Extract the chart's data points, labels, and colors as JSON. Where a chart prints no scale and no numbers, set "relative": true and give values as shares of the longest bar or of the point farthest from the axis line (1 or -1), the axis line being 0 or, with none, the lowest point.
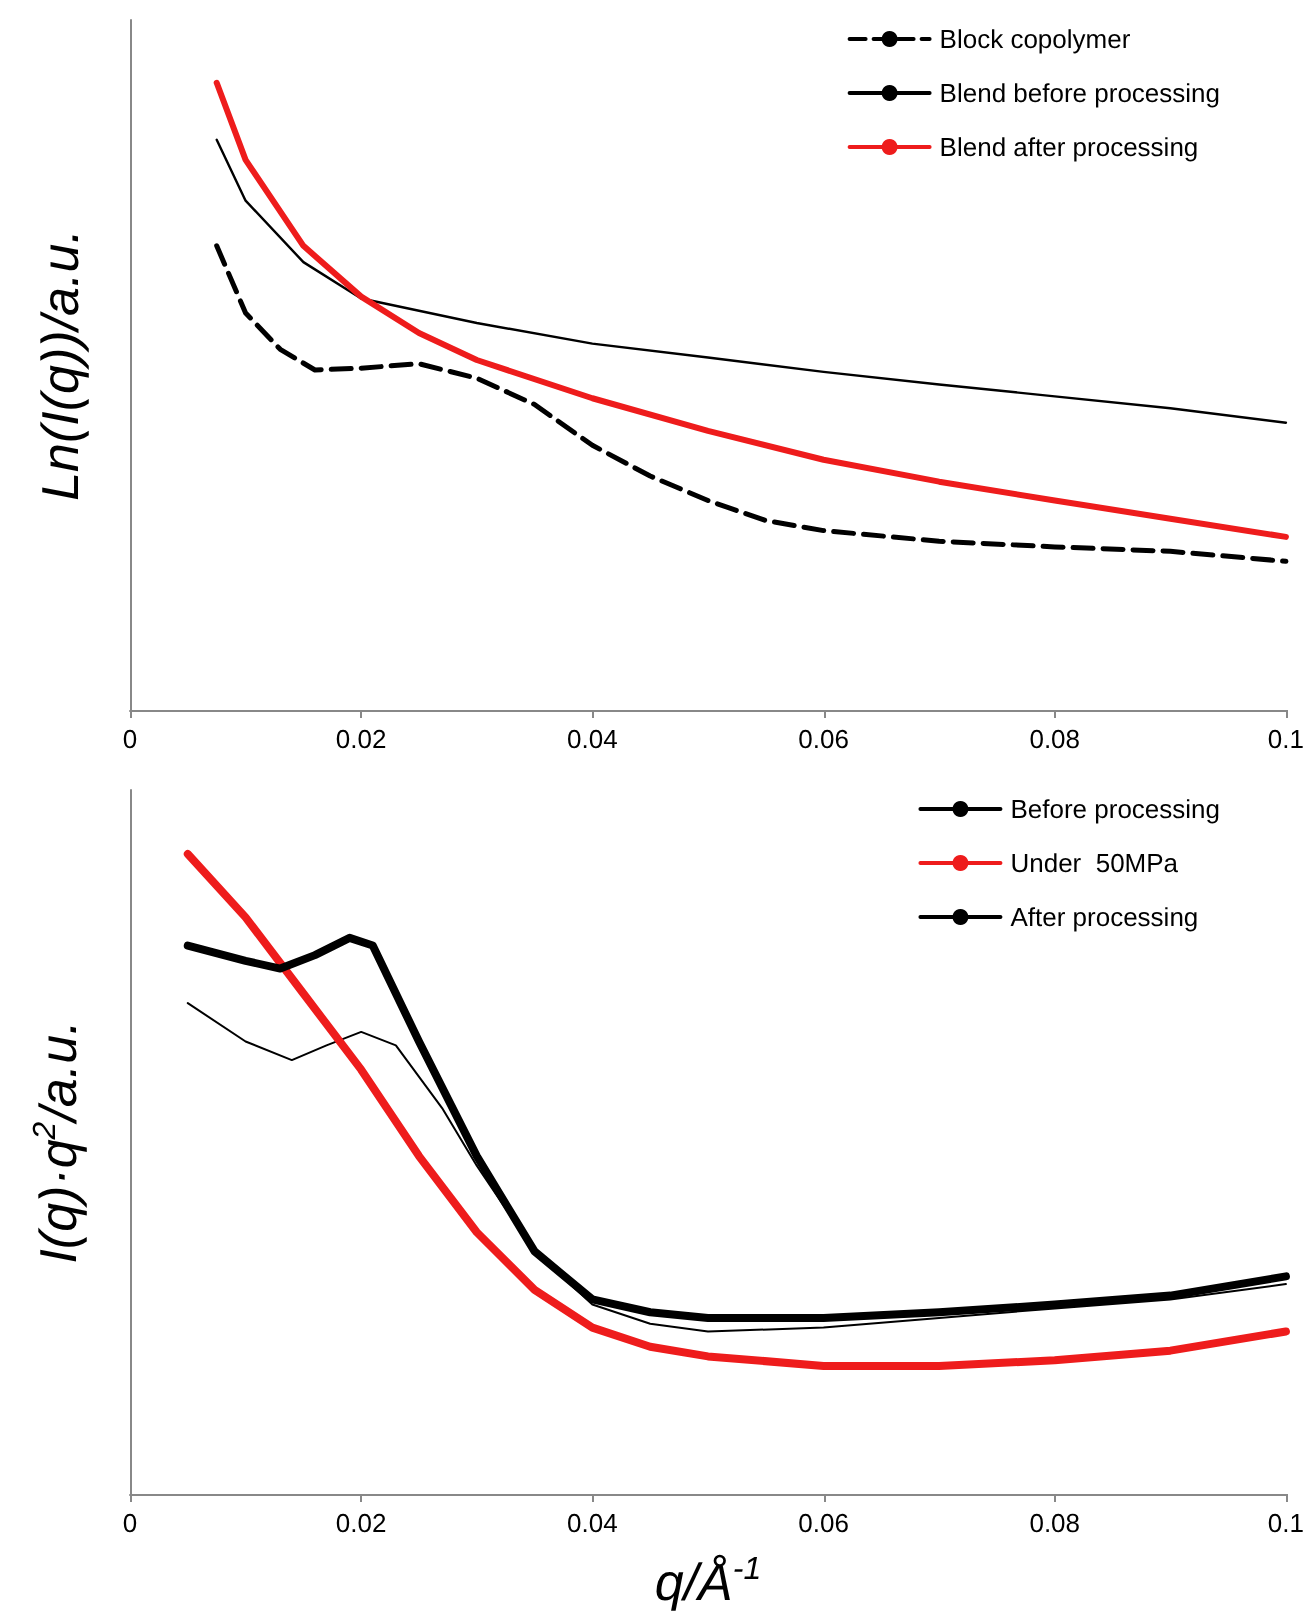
{
  "chart_data": [
    {
      "type": "line",
      "ylabel": "Ln(I(q))/a.u.",
      "relative": true,
      "xlim": [
        0,
        0.1
      ],
      "xticks": [
        0,
        0.02,
        0.04,
        0.06,
        0.08,
        0.1
      ],
      "tick_labels": "x",
      "grid": false,
      "legend": "top right",
      "marker": "none",
      "series": [
        {
          "name": "Block copolymer",
          "color": "#000000",
          "line_style": "dashed",
          "x": [
            0.0075,
            0.01,
            0.013,
            0.016,
            0.02,
            0.025,
            0.03,
            0.035,
            0.04,
            0.045,
            0.05,
            0.055,
            0.06,
            0.07,
            0.08,
            0.09,
            0.1
          ],
          "values": [
            0.74,
            0.633,
            0.575,
            0.542,
            0.545,
            0.552,
            0.529,
            0.487,
            0.422,
            0.373,
            0.334,
            0.302,
            0.286,
            0.269,
            0.26,
            0.253,
            0.237
          ]
        },
        {
          "name": "Blend before processing",
          "color": "#000000",
          "line_style": "solid",
          "x": [
            0.0075,
            0.01,
            0.015,
            0.02,
            0.03,
            0.04,
            0.05,
            0.06,
            0.07,
            0.08,
            0.09,
            0.1
          ],
          "values": [
            0.909,
            0.812,
            0.714,
            0.656,
            0.617,
            0.584,
            0.562,
            0.539,
            0.519,
            0.5,
            0.481,
            0.458
          ]
        },
        {
          "name": "Blend after processing",
          "color": "#ee1c1c",
          "line_style": "solid",
          "x": [
            0.0075,
            0.01,
            0.015,
            0.02,
            0.025,
            0.03,
            0.04,
            0.05,
            0.06,
            0.07,
            0.08,
            0.09,
            0.1
          ],
          "values": [
            1,
            0.877,
            0.74,
            0.659,
            0.601,
            0.558,
            0.497,
            0.445,
            0.399,
            0.364,
            0.334,
            0.305,
            0.276
          ]
        }
      ]
    },
    {
      "type": "line",
      "xlabel": "q/Å$^{-1}$",
      "ylabel": "I(q)·q$^{2}$/a.u.",
      "relative": true,
      "xlim": [
        0,
        0.1
      ],
      "xticks": [
        0,
        0.02,
        0.04,
        0.06,
        0.08,
        0.1
      ],
      "tick_labels": "x",
      "grid": false,
      "legend": "top right",
      "marker": "none",
      "series": [
        {
          "name": "Before processing",
          "color": "#000000",
          "line_style": "solid",
          "x": [
            0.005,
            0.01,
            0.014,
            0.017,
            0.02,
            0.023,
            0.027,
            0.03,
            0.035,
            0.04,
            0.045,
            0.05,
            0.06,
            0.07,
            0.08,
            0.09,
            0.1
          ],
          "values": [
            0.767,
            0.707,
            0.678,
            0.701,
            0.722,
            0.701,
            0.603,
            0.513,
            0.379,
            0.296,
            0.266,
            0.254,
            0.26,
            0.275,
            0.29,
            0.304,
            0.328
          ]
        },
        {
          "name": "Under  50MPa",
          "color": "#ee1c1c",
          "line_style": "solid",
          "x": [
            0.005,
            0.01,
            0.015,
            0.02,
            0.025,
            0.03,
            0.035,
            0.04,
            0.045,
            0.05,
            0.06,
            0.07,
            0.08,
            0.09,
            0.1
          ],
          "values": [
            1,
            0.901,
            0.782,
            0.663,
            0.528,
            0.409,
            0.319,
            0.26,
            0.23,
            0.215,
            0.2,
            0.2,
            0.209,
            0.224,
            0.254
          ]
        },
        {
          "name": "After processing",
          "color": "#000000",
          "line_style": "solid",
          "x": [
            0.005,
            0.01,
            0.013,
            0.016,
            0.019,
            0.021,
            0.025,
            0.03,
            0.035,
            0.04,
            0.045,
            0.05,
            0.06,
            0.07,
            0.08,
            0.09,
            0.1
          ],
          "values": [
            0.857,
            0.833,
            0.821,
            0.842,
            0.869,
            0.857,
            0.707,
            0.528,
            0.379,
            0.304,
            0.284,
            0.275,
            0.275,
            0.284,
            0.296,
            0.31,
            0.34
          ]
        }
      ]
    }
  ]
}
